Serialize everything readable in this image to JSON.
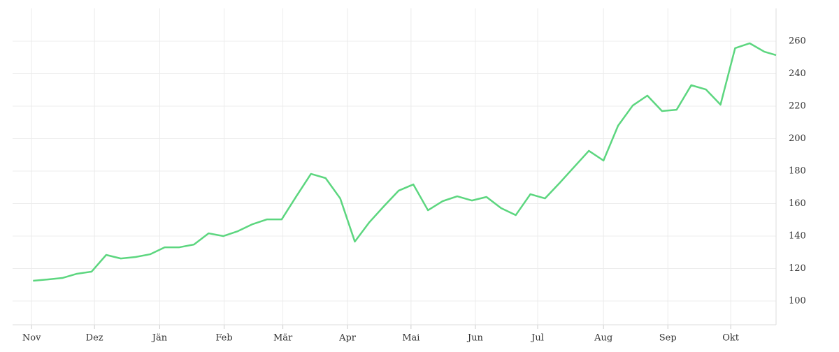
{
  "chart_data": {
    "type": "line",
    "x": [
      0,
      1,
      2,
      3,
      4,
      5,
      6,
      7,
      8,
      9,
      10,
      11,
      12,
      13,
      14,
      15,
      16,
      17,
      18,
      19,
      20,
      21,
      22,
      23,
      24,
      25,
      26,
      27,
      28,
      29,
      30,
      31,
      32,
      33,
      34,
      35,
      36,
      37,
      38,
      39,
      40,
      41,
      42,
      43,
      44,
      45,
      46,
      47,
      48,
      49,
      50,
      50.8
    ],
    "series": [
      {
        "color": "#5cd67f",
        "values": [
          112.5,
          113.3,
          114.2,
          116.8,
          118.1,
          128.4,
          126.2,
          127.1,
          128.8,
          133.1,
          133.1,
          134.8,
          141.7,
          140,
          143,
          147.3,
          150.3,
          150.3,
          164.5,
          178.3,
          175.7,
          163.2,
          136.6,
          148.6,
          158.5,
          168,
          171.8,
          155.9,
          161.5,
          164.5,
          161.9,
          164.1,
          157.2,
          152.9,
          165.8,
          163.2,
          172.7,
          182.6,
          192.5,
          186.5,
          208,
          220.4,
          226.5,
          217,
          217.8,
          232.9,
          230.3,
          220.9,
          255.7,
          258.7,
          253.5,
          251.4
        ]
      }
    ],
    "xlim": [
      -1.4,
      50.8
    ],
    "xticks": [
      {
        "value": -0.1,
        "label": "Nov"
      },
      {
        "value": 4.2,
        "label": "Dez"
      },
      {
        "value": 8.66,
        "label": "Jän"
      },
      {
        "value": 13.06,
        "label": "Feb"
      },
      {
        "value": 17.08,
        "label": "Mär"
      },
      {
        "value": 21.5,
        "label": "Apr"
      },
      {
        "value": 25.84,
        "label": "Mai"
      },
      {
        "value": 30.24,
        "label": "Jun"
      },
      {
        "value": 34.5,
        "label": "Jul"
      },
      {
        "value": 39,
        "label": "Aug"
      },
      {
        "value": 43.4,
        "label": "Sep"
      },
      {
        "value": 47.7,
        "label": "Okt"
      }
    ],
    "ylim": [
      85.4,
      280.2
    ],
    "yticks": [
      100,
      120,
      140,
      160,
      180,
      200,
      220,
      240,
      260
    ],
    "grid": true
  }
}
